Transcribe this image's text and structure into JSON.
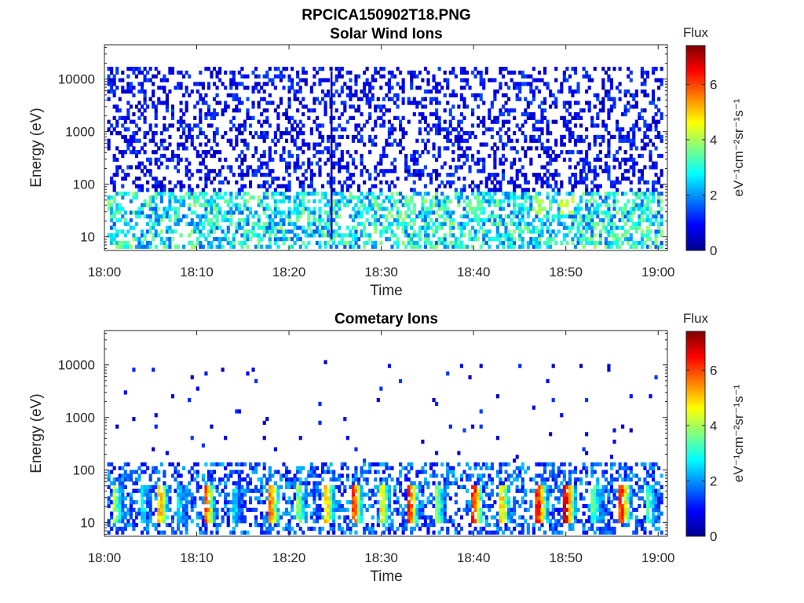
{
  "figure_title": "RPCICA150902T18.PNG",
  "chart_data": [
    {
      "type": "heatmap",
      "title": "Solar Wind Ions",
      "xlabel": "Time",
      "ylabel": "Energy (eV)",
      "xlim": [
        "18:00",
        "19:01"
      ],
      "xticks": [
        "18:00",
        "18:10",
        "18:20",
        "18:30",
        "18:40",
        "18:50",
        "19:00"
      ],
      "yscale": "log",
      "ylim": [
        5.5,
        45000
      ],
      "yticks": [
        10,
        100,
        1000,
        10000
      ],
      "yticklabels": [
        "10",
        "100",
        "1000",
        "10000"
      ],
      "colorbar": {
        "label": "Flux",
        "units": "eV⁻¹cm⁻²sr⁻¹s⁻¹",
        "range": [
          0,
          7.4
        ],
        "ticks": [
          0,
          2,
          4,
          6
        ],
        "colormap": "jet"
      },
      "features": {
        "max_energy_eV": 15000,
        "background_flux": [
          0.3,
          1.5
        ],
        "low_energy_band_eV": [
          6,
          70
        ],
        "low_energy_band_flux": [
          1.5,
          5.0
        ],
        "vertical_streak_time": "18:24:30"
      },
      "hotspots": [
        {
          "time": "18:50",
          "energy_eV": 35,
          "flux": 4.6
        },
        {
          "time": "18:47",
          "energy_eV": 35,
          "flux": 4.2
        },
        {
          "time": "18:40",
          "energy_eV": 35,
          "flux": 3.8
        },
        {
          "time": "18:33",
          "energy_eV": 35,
          "flux": 3.6
        },
        {
          "time": "18:10",
          "energy_eV": 35,
          "flux": 3.4
        }
      ]
    },
    {
      "type": "heatmap",
      "title": "Cometary Ions",
      "xlabel": "Time",
      "ylabel": "Energy (eV)",
      "xlim": [
        "18:00",
        "19:01"
      ],
      "xticks": [
        "18:00",
        "18:10",
        "18:20",
        "18:30",
        "18:40",
        "18:50",
        "19:00"
      ],
      "yscale": "log",
      "ylim": [
        5.5,
        45000
      ],
      "yticks": [
        10,
        100,
        1000,
        10000
      ],
      "yticklabels": [
        "10",
        "100",
        "1000",
        "10000"
      ],
      "colorbar": {
        "label": "Flux",
        "units": "eV⁻¹cm⁻²sr⁻¹s⁻¹",
        "range": [
          0,
          7.4
        ],
        "ticks": [
          0,
          2,
          4,
          6
        ],
        "colormap": "jet"
      },
      "features": {
        "max_energy_eV": 11000,
        "dense_band_eV": [
          6,
          120
        ],
        "sparse_above_eV": 120
      },
      "bursts": [
        {
          "time": "18:01",
          "flux": 4.6
        },
        {
          "time": "18:04",
          "flux": 3.4
        },
        {
          "time": "18:06",
          "flux": 5.6
        },
        {
          "time": "18:08",
          "flux": 3.0
        },
        {
          "time": "18:11",
          "flux": 6.2
        },
        {
          "time": "18:14",
          "flux": 3.2
        },
        {
          "time": "18:18",
          "flux": 6.0
        },
        {
          "time": "18:21",
          "flux": 4.2
        },
        {
          "time": "18:24",
          "flux": 5.8
        },
        {
          "time": "18:27",
          "flux": 6.4
        },
        {
          "time": "18:30",
          "flux": 5.2
        },
        {
          "time": "18:33",
          "flux": 6.6
        },
        {
          "time": "18:36",
          "flux": 4.4
        },
        {
          "time": "18:40",
          "flux": 6.8
        },
        {
          "time": "18:43",
          "flux": 5.4
        },
        {
          "time": "18:47",
          "flux": 6.8
        },
        {
          "time": "18:50",
          "flux": 7.2
        },
        {
          "time": "18:53",
          "flux": 4.0
        },
        {
          "time": "18:56",
          "flux": 6.6
        },
        {
          "time": "18:59",
          "flux": 3.6
        }
      ]
    }
  ]
}
